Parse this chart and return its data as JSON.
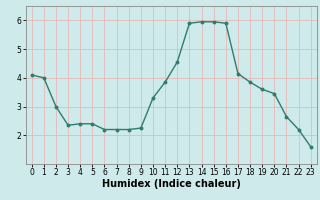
{
  "x": [
    0,
    1,
    2,
    3,
    4,
    5,
    6,
    7,
    8,
    9,
    10,
    11,
    12,
    13,
    14,
    15,
    16,
    17,
    18,
    19,
    20,
    21,
    22,
    23
  ],
  "y": [
    4.1,
    4.0,
    3.0,
    2.35,
    2.4,
    2.4,
    2.2,
    2.2,
    2.2,
    2.25,
    3.3,
    3.85,
    4.55,
    5.9,
    5.95,
    5.95,
    5.9,
    4.15,
    3.85,
    3.6,
    3.45,
    2.65,
    2.2,
    1.6
  ],
  "line_color": "#2e7d6e",
  "marker": "o",
  "markersize": 1.8,
  "linewidth": 1.0,
  "xlabel": "Humidex (Indice chaleur)",
  "xlabel_fontsize": 7,
  "ylabel": "",
  "title": "",
  "xlim": [
    -0.5,
    23.5
  ],
  "ylim": [
    1.0,
    6.5
  ],
  "yticks": [
    2,
    3,
    4,
    5,
    6
  ],
  "xticks": [
    0,
    1,
    2,
    3,
    4,
    5,
    6,
    7,
    8,
    9,
    10,
    11,
    12,
    13,
    14,
    15,
    16,
    17,
    18,
    19,
    20,
    21,
    22,
    23
  ],
  "bg_color": "#ceeaea",
  "grid_color": "#e8b8b8",
  "tick_fontsize": 5.5,
  "spine_color": "#888888"
}
